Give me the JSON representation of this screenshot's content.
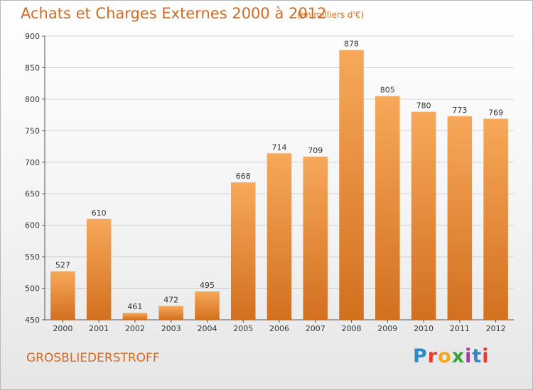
{
  "header": {
    "title": "Achats et Charges Externes 2000 à 2012",
    "unit": "(en milliers d'€)"
  },
  "footer": {
    "commune": "GROSBLIEDERSTROFF",
    "logo_letters": [
      "P",
      "r",
      "o",
      "x",
      "i",
      "t",
      "i"
    ]
  },
  "colors": {
    "bar_top": "#f7a85a",
    "bar_bottom": "#d2701f",
    "text_accent": "#d4691f",
    "grid": "#d0d0d0"
  },
  "chart_data": {
    "type": "bar",
    "title": "Achats et Charges Externes 2000 à 2012",
    "subtitle": "(en milliers d'€)",
    "xlabel": "",
    "ylabel": "",
    "categories": [
      "2000",
      "2001",
      "2002",
      "2003",
      "2004",
      "2005",
      "2006",
      "2007",
      "2008",
      "2009",
      "2010",
      "2011",
      "2012"
    ],
    "values": [
      527,
      610,
      461,
      472,
      495,
      668,
      714,
      709,
      878,
      805,
      780,
      773,
      769
    ],
    "ylim": [
      450,
      900
    ],
    "yticks": [
      450,
      500,
      550,
      600,
      650,
      700,
      750,
      800,
      850,
      900
    ],
    "grid": true,
    "data_labels": true
  }
}
